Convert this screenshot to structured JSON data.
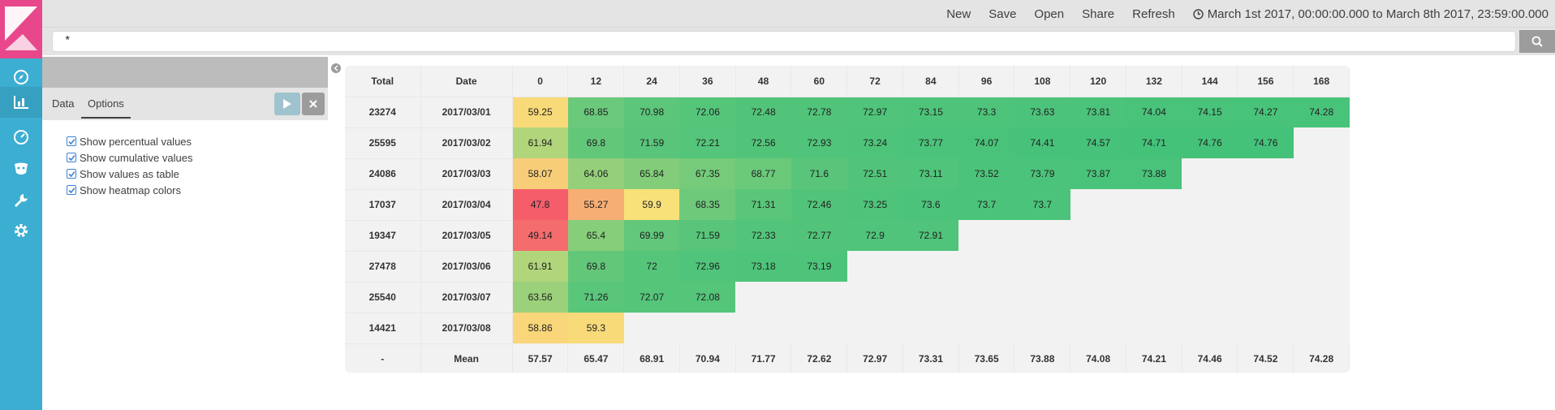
{
  "topbar": {
    "links": [
      "New",
      "Save",
      "Open",
      "Share",
      "Refresh"
    ],
    "time_range": "March 1st 2017, 00:00:00.000 to March 8th 2017, 23:59:00.000"
  },
  "query": {
    "value": "*"
  },
  "editor": {
    "tabs": [
      "Data",
      "Options"
    ],
    "active_tab": "Options",
    "options": [
      {
        "label": "Show percentual values",
        "checked": true
      },
      {
        "label": "Show cumulative values",
        "checked": true
      },
      {
        "label": "Show values as table",
        "checked": true
      },
      {
        "label": "Show heatmap colors",
        "checked": true
      }
    ]
  },
  "colors": {
    "sidebar": "#3caed2",
    "logo": "#e8488b",
    "heat_low": "#f55d6b",
    "heat_mid": "#f8e07a",
    "heat_high": "#45c27a"
  },
  "chart_data": {
    "type": "table",
    "columns": [
      "Total",
      "Date",
      "0",
      "12",
      "24",
      "36",
      "48",
      "60",
      "72",
      "84",
      "96",
      "108",
      "120",
      "132",
      "144",
      "156",
      "168"
    ],
    "rows": [
      {
        "total": "23274",
        "date": "2017/03/01",
        "values": [
          "59.25",
          "68.85",
          "70.98",
          "72.06",
          "72.48",
          "72.78",
          "72.97",
          "73.15",
          "73.3",
          "73.63",
          "73.81",
          "74.04",
          "74.15",
          "74.27",
          "74.28"
        ]
      },
      {
        "total": "25595",
        "date": "2017/03/02",
        "values": [
          "61.94",
          "69.8",
          "71.59",
          "72.21",
          "72.56",
          "72.93",
          "73.24",
          "73.77",
          "74.07",
          "74.41",
          "74.57",
          "74.71",
          "74.76",
          "74.76"
        ]
      },
      {
        "total": "24086",
        "date": "2017/03/03",
        "values": [
          "58.07",
          "64.06",
          "65.84",
          "67.35",
          "68.77",
          "71.6",
          "72.51",
          "73.11",
          "73.52",
          "73.79",
          "73.87",
          "73.88"
        ]
      },
      {
        "total": "17037",
        "date": "2017/03/04",
        "values": [
          "47.8",
          "55.27",
          "59.9",
          "68.35",
          "71.31",
          "72.46",
          "73.25",
          "73.6",
          "73.7",
          "73.7"
        ]
      },
      {
        "total": "19347",
        "date": "2017/03/05",
        "values": [
          "49.14",
          "65.4",
          "69.99",
          "71.59",
          "72.33",
          "72.77",
          "72.9",
          "72.91"
        ]
      },
      {
        "total": "27478",
        "date": "2017/03/06",
        "values": [
          "61.91",
          "69.8",
          "72",
          "72.96",
          "73.18",
          "73.19"
        ]
      },
      {
        "total": "25540",
        "date": "2017/03/07",
        "values": [
          "63.56",
          "71.26",
          "72.07",
          "72.08"
        ]
      },
      {
        "total": "14421",
        "date": "2017/03/08",
        "values": [
          "58.86",
          "59.3"
        ]
      }
    ],
    "mean": {
      "total": "-",
      "date": "Mean",
      "values": [
        "57.57",
        "65.47",
        "68.91",
        "70.94",
        "71.77",
        "72.62",
        "72.97",
        "73.31",
        "73.65",
        "73.88",
        "74.08",
        "74.21",
        "74.46",
        "74.52",
        "74.28"
      ]
    }
  }
}
